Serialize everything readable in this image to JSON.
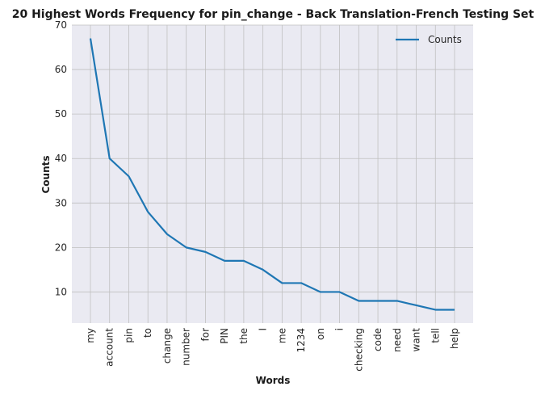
{
  "chart_data": {
    "type": "line",
    "title": "20 Highest Words Frequency for pin_change - Back Translation-French Testing Set",
    "xlabel": "Words",
    "ylabel": "Counts",
    "categories": [
      "my",
      "account",
      "pin",
      "to",
      "change",
      "number",
      "for",
      "PIN",
      "the",
      "I",
      "me",
      "1234",
      "on",
      "i",
      "checking",
      "code",
      "need",
      "want",
      "tell",
      "help"
    ],
    "series": [
      {
        "name": "Counts",
        "color": "#1f77b4",
        "values": [
          67,
          40,
          36,
          28,
          23,
          20,
          19,
          17,
          17,
          15,
          12,
          12,
          10,
          10,
          8,
          8,
          8,
          7,
          6,
          6
        ]
      }
    ],
    "ylim": [
      3,
      70
    ],
    "yticks": [
      10,
      20,
      30,
      40,
      50,
      60,
      70
    ],
    "grid": true,
    "legend_position": "top-right",
    "colors": {
      "plot_background": "#eaeaf2",
      "grid": "#c0c0c0",
      "line": "#1f77b4"
    }
  }
}
